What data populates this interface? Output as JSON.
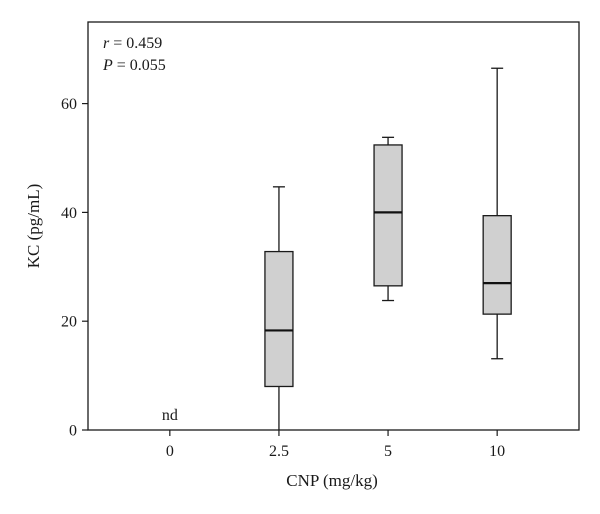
{
  "chart_data": {
    "type": "box",
    "xlabel": "CNP (mg/kg)",
    "ylabel": "KC (pg/mL)",
    "ylim": [
      0,
      75
    ],
    "y_ticks": [
      0,
      20,
      40,
      60
    ],
    "categories": [
      "0",
      "2.5",
      "5",
      "10"
    ],
    "boxes": [
      {
        "category": "0",
        "note": "nd"
      },
      {
        "category": "2.5",
        "min": 0,
        "q1": 8,
        "median": 18.3,
        "q3": 32.8,
        "max": 44.7
      },
      {
        "category": "5",
        "min": 23.8,
        "q1": 26.5,
        "median": 40,
        "q3": 52.4,
        "max": 53.8
      },
      {
        "category": "10",
        "min": 13.1,
        "q1": 21.3,
        "median": 27,
        "q3": 39.4,
        "max": 66.5
      }
    ],
    "annotations": {
      "r_symbol": "r",
      "r_value": " = 0.459",
      "p_symbol": "P",
      "p_value": " = 0.055"
    },
    "colors": {
      "box_fill": "#d0d0d0",
      "line": "#1a1a1a"
    },
    "grid": false
  }
}
